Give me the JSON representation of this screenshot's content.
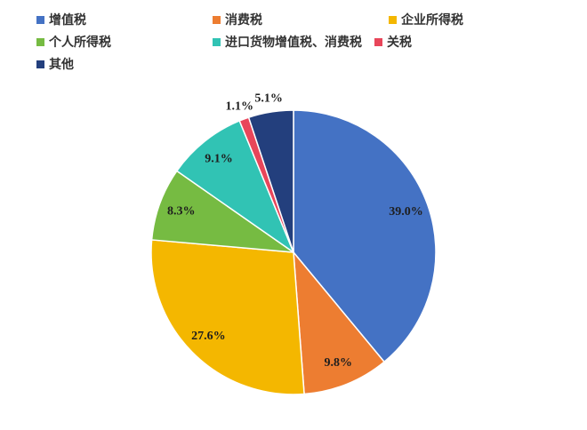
{
  "chart_data": {
    "type": "pie",
    "categories": [
      "增值税",
      "消费税",
      "企业所得税",
      "个人所得税",
      "进口货物增值税、消费税",
      "关税",
      "其他"
    ],
    "values": [
      39.0,
      9.8,
      27.6,
      8.3,
      9.1,
      1.1,
      5.1
    ],
    "labels": [
      "39.0%",
      "9.8%",
      "27.6%",
      "8.3%",
      "9.1%",
      "1.1%",
      "5.1%"
    ],
    "colors": [
      "#4472C4",
      "#ED7D31",
      "#F4B700",
      "#76BB42",
      "#31C3B4",
      "#E8465A",
      "#233F7D"
    ],
    "legend": "top"
  }
}
